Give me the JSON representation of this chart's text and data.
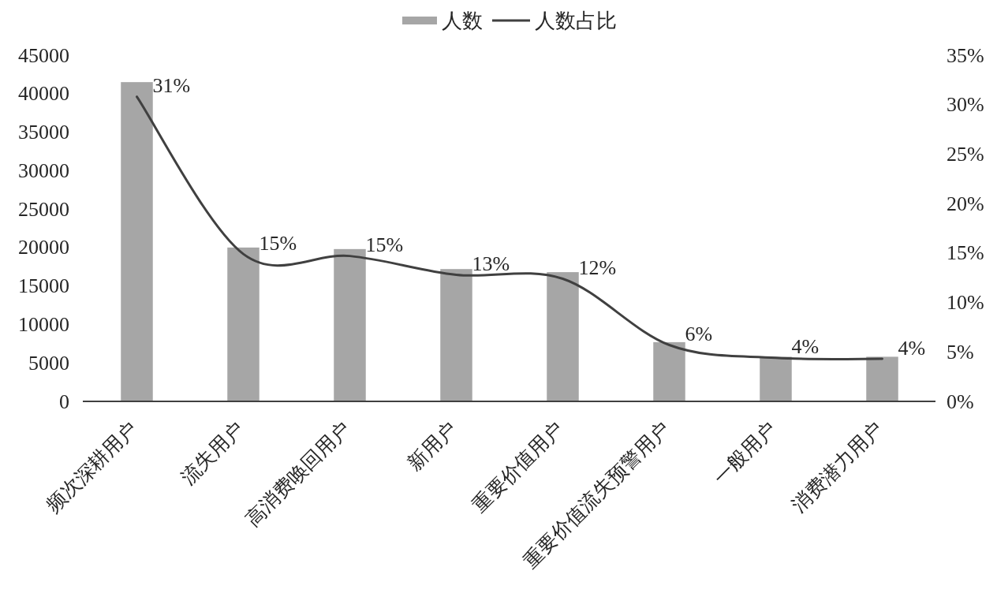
{
  "chart_data": {
    "type": "bar",
    "categories": [
      "频次深耕用户",
      "流失用户",
      "高消费唤回用户",
      "新用户",
      "重要价值用户",
      "重要价值流失预警用户",
      "一般用户",
      "消费潜力用户"
    ],
    "series": [
      {
        "name": "人数",
        "color": "#a6a6a6",
        "values": [
          41500,
          20000,
          19800,
          17200,
          16800,
          7700,
          5800,
          5800
        ]
      },
      {
        "name": "人数占比",
        "type": "line",
        "axis": "y2",
        "color": "#404040",
        "values": [
          30.8,
          14.9,
          14.7,
          12.8,
          12.4,
          5.7,
          4.4,
          4.3
        ],
        "value_labels": [
          "31%",
          "15%",
          "15%",
          "13%",
          "12%",
          "6%",
          "4%",
          "4%"
        ]
      }
    ],
    "ylim": [
      0,
      45000
    ],
    "yticks": [
      0,
      5000,
      10000,
      15000,
      20000,
      25000,
      30000,
      35000,
      40000,
      45000
    ],
    "y2lim": [
      0,
      35
    ],
    "y2ticks": [
      {
        "value": 0,
        "label": "0%"
      },
      {
        "value": 5,
        "label": "5%"
      },
      {
        "value": 10,
        "label": "10%"
      },
      {
        "value": 15,
        "label": "15%"
      },
      {
        "value": 20,
        "label": "20%"
      },
      {
        "value": 25,
        "label": "25%"
      },
      {
        "value": 30,
        "label": "30%"
      },
      {
        "value": 35,
        "label": "35%"
      }
    ],
    "legend": "top"
  }
}
